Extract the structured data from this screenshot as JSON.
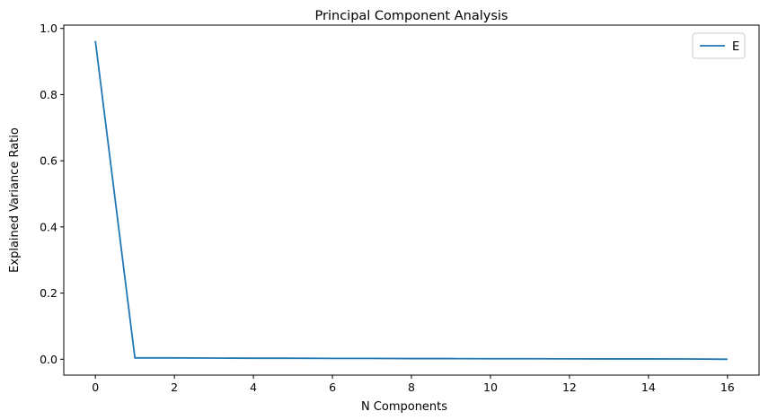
{
  "chart_data": {
    "type": "line",
    "title": "Principal Component Analysis",
    "xlabel": "N Components",
    "ylabel": "Explained Variance Ratio",
    "xlim": [
      -0.8,
      16.8
    ],
    "ylim": [
      -0.048,
      1.01
    ],
    "xticks": [
      0,
      2,
      4,
      6,
      8,
      10,
      12,
      14,
      16
    ],
    "yticks": [
      0.0,
      0.2,
      0.4,
      0.6,
      0.8,
      1.0
    ],
    "ytick_labels": [
      "0.0",
      "0.2",
      "0.4",
      "0.6",
      "0.8",
      "1.0"
    ],
    "grid": false,
    "legend": "top-right",
    "series": [
      {
        "name": "E",
        "color": "#1f77b4",
        "x": [
          0,
          1,
          2,
          3,
          4,
          5,
          6,
          7,
          8,
          9,
          10,
          11,
          12,
          13,
          14,
          15,
          16
        ],
        "values": [
          0.962,
          0.004,
          0.004,
          0.0035,
          0.003,
          0.003,
          0.0025,
          0.0025,
          0.002,
          0.002,
          0.0015,
          0.0015,
          0.0012,
          0.001,
          0.001,
          0.0008,
          0.0
        ]
      }
    ]
  }
}
